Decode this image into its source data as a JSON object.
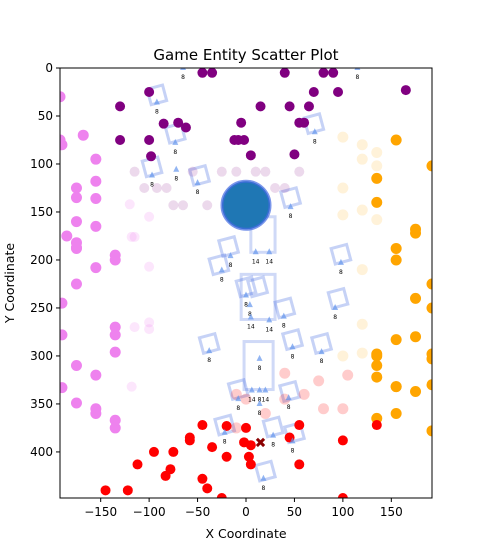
{
  "chart_data": {
    "type": "scatter",
    "title": "Game Entity Scatter Plot",
    "xlabel": "X Coordinate",
    "ylabel": "Y Coordinate",
    "xlim": [
      -192,
      192
    ],
    "ylim": [
      448,
      0
    ],
    "y_inverted": true,
    "xticks": [
      -150,
      -100,
      -50,
      0,
      50,
      100,
      150
    ],
    "yticks": [
      0,
      50,
      100,
      150,
      200,
      250,
      300,
      350,
      400
    ],
    "grid": false,
    "legend": "none",
    "colors": {
      "purple": "#800080",
      "violet": "#ee82ee",
      "orange": "#ffa500",
      "red": "#ff0000",
      "blue": "#1f77b4",
      "frame": "#4169e1",
      "marker": "#8b0000"
    },
    "series": [
      {
        "color": "#800080",
        "alpha": 1.0,
        "x": [
          -45,
          -35,
          -130,
          -130,
          -100,
          -100,
          -98,
          -85,
          -70,
          -62,
          -12,
          -8,
          -5,
          -2,
          5,
          15,
          40,
          45,
          50,
          55,
          60,
          65,
          70,
          80,
          90,
          95,
          165
        ],
        "y": [
          5,
          5,
          40,
          75,
          25,
          75,
          92,
          58,
          57,
          62,
          75,
          75,
          57,
          75,
          91,
          40,
          5,
          40,
          90,
          57,
          57,
          40,
          25,
          5,
          5,
          25,
          23
        ]
      },
      {
        "color": "#800080",
        "alpha": 0.15,
        "x": [
          -115,
          -105,
          -92,
          -82,
          -75,
          -65,
          -55,
          -40,
          -25,
          -10,
          10,
          20,
          30,
          40,
          55
        ],
        "y": [
          108,
          125,
          125,
          125,
          143,
          143,
          108,
          143,
          108,
          108,
          108,
          108,
          125,
          125,
          108
        ]
      },
      {
        "color": "#ee82ee",
        "alpha": 1.0,
        "x": [
          -192,
          -192,
          -190,
          -185,
          -175,
          -175,
          -175,
          -175,
          -175,
          -175,
          -168,
          -155,
          -155,
          -155,
          -155,
          -135,
          -135,
          -135,
          -135
        ],
        "y": [
          30,
          75,
          80,
          175,
          125,
          135,
          160,
          182,
          188,
          225,
          70,
          95,
          118,
          136,
          165,
          195,
          200,
          270,
          278
        ],
        "size": 5.5
      },
      {
        "color": "#ee82ee",
        "alpha": 1.0,
        "x": [
          -190,
          -190,
          -175,
          -155,
          -155,
          -135,
          -135,
          -155,
          -135,
          -175,
          -155,
          -190,
          -175
        ],
        "y": [
          245,
          278,
          310,
          320,
          360,
          296,
          375,
          355,
          367,
          349,
          208,
          333,
          187
        ],
        "size": 5.5
      },
      {
        "color": "#ee82ee",
        "alpha": 0.2,
        "x": [
          -120,
          -115,
          -115,
          -100,
          -100,
          -100,
          -100,
          -118,
          -135,
          -118
        ],
        "y": [
          142,
          176,
          270,
          155,
          207,
          265,
          272,
          332,
          368,
          176
        ]
      },
      {
        "color": "#ffa500",
        "alpha": 1.0,
        "x": [
          155,
          135,
          135,
          175,
          175,
          155,
          155,
          175,
          135,
          135,
          135,
          155,
          175,
          135,
          155,
          192,
          192,
          192,
          192,
          175,
          192,
          155,
          135,
          192,
          155,
          192
        ],
        "y": [
          75,
          115,
          140,
          168,
          172,
          188,
          200,
          240,
          298,
          310,
          322,
          332,
          337,
          365,
          360,
          102,
          225,
          250,
          298,
          280,
          303,
          283,
          300,
          330,
          332,
          378
        ],
        "size": 5.5
      },
      {
        "color": "#ffa500",
        "alpha": 0.15,
        "x": [
          100,
          120,
          120,
          120,
          120,
          100,
          100,
          120,
          120,
          100,
          135,
          135,
          135
        ],
        "y": [
          72,
          80,
          95,
          148,
          210,
          125,
          153,
          267,
          297,
          300,
          88,
          102,
          158
        ],
        "size": 5.5
      },
      {
        "color": "#ff0000",
        "alpha": 1.0,
        "x": [
          -145,
          -122,
          -112,
          -95,
          -83,
          -78,
          -75,
          -58,
          -58,
          -45,
          -45,
          -40,
          -35,
          -25,
          -20,
          -20,
          0,
          -2,
          3,
          5,
          5,
          45,
          55,
          55,
          100,
          100,
          135
        ],
        "y": [
          440,
          440,
          413,
          400,
          425,
          418,
          400,
          388,
          385,
          372,
          428,
          438,
          395,
          448,
          373,
          405,
          375,
          390,
          405,
          413,
          393,
          385,
          372,
          413,
          388,
          448,
          372
        ]
      },
      {
        "color": "#ff0000",
        "alpha": 0.2,
        "x": [
          -10,
          0,
          -10,
          20,
          40,
          60,
          75,
          80,
          100,
          105,
          40
        ],
        "y": [
          340,
          345,
          375,
          360,
          318,
          340,
          326,
          355,
          355,
          320,
          345
        ],
        "size": 5.5
      },
      {
        "color": "#1f77b4",
        "alpha": 1.0,
        "x": [
          0
        ],
        "y": [
          143
        ],
        "size": 24,
        "outline": "#4169e1"
      }
    ],
    "special_marker": {
      "shape": "x",
      "color": "#8b0000",
      "x": [
        15
      ],
      "y": [
        390
      ]
    },
    "entities": [
      {
        "x": -92,
        "y": 36,
        "label": "8"
      },
      {
        "x": -73,
        "y": 78,
        "label": "8"
      },
      {
        "x": -97,
        "y": 112,
        "label": "8"
      },
      {
        "x": -72,
        "y": 106,
        "label": "8"
      },
      {
        "x": -50,
        "y": 120,
        "label": "8"
      },
      {
        "x": 46,
        "y": 145,
        "label": "8"
      },
      {
        "x": 71,
        "y": 67,
        "label": "8"
      },
      {
        "x": -16,
        "y": 196,
        "label": "8"
      },
      {
        "x": 10,
        "y": 192,
        "label": "14"
      },
      {
        "x": 24,
        "y": 192,
        "label": "14"
      },
      {
        "x": -25,
        "y": 211,
        "label": "8"
      },
      {
        "x": 98,
        "y": 203,
        "label": "8"
      },
      {
        "x": 0,
        "y": 237,
        "label": "8"
      },
      {
        "x": 4,
        "y": 247,
        "label": "8"
      },
      {
        "x": 5,
        "y": 260,
        "label": "14"
      },
      {
        "x": 24,
        "y": 263,
        "label": "14"
      },
      {
        "x": 39,
        "y": 259,
        "label": "8"
      },
      {
        "x": 92,
        "y": 250,
        "label": "8"
      },
      {
        "x": -38,
        "y": 295,
        "label": "8"
      },
      {
        "x": 48,
        "y": 291,
        "label": "8"
      },
      {
        "x": 78,
        "y": 296,
        "label": "8"
      },
      {
        "x": 14,
        "y": 303,
        "label": "8"
      },
      {
        "x": -8,
        "y": 345,
        "label": "8"
      },
      {
        "x": 6,
        "y": 336,
        "label": "14"
      },
      {
        "x": 14,
        "y": 336,
        "label": "8"
      },
      {
        "x": 20,
        "y": 336,
        "label": "14"
      },
      {
        "x": 14,
        "y": 350,
        "label": "8"
      },
      {
        "x": 44,
        "y": 344,
        "label": "8"
      },
      {
        "x": -22,
        "y": 380,
        "label": "8"
      },
      {
        "x": 28,
        "y": 383,
        "label": "8"
      },
      {
        "x": 48,
        "y": 389,
        "label": "8"
      },
      {
        "x": 18,
        "y": 428,
        "label": "8"
      },
      {
        "x": -65,
        "y": 0,
        "label": "8"
      },
      {
        "x": 115,
        "y": 0,
        "label": "8"
      }
    ],
    "boxes": [
      {
        "x": -92,
        "y": 28
      },
      {
        "x": -73,
        "y": 68
      },
      {
        "x": -97,
        "y": 103
      },
      {
        "x": -48,
        "y": 112
      },
      {
        "x": 46,
        "y": 135
      },
      {
        "x": 70,
        "y": 58
      },
      {
        "x": -18,
        "y": 186
      },
      {
        "x": 98,
        "y": 194
      },
      {
        "x": 95,
        "y": 240
      },
      {
        "x": 40,
        "y": 250
      },
      {
        "x": -38,
        "y": 287
      },
      {
        "x": 48,
        "y": 283
      },
      {
        "x": 78,
        "y": 287
      },
      {
        "x": -8,
        "y": 335
      },
      {
        "x": 45,
        "y": 337
      },
      {
        "x": -22,
        "y": 372
      },
      {
        "x": 28,
        "y": 374
      },
      {
        "x": 50,
        "y": 380
      },
      {
        "x": 20,
        "y": 420
      },
      {
        "x": -28,
        "y": 205
      },
      {
        "x": 0,
        "y": 228
      },
      {
        "x": 12,
        "y": 228
      }
    ],
    "tall_frames": [
      {
        "x0": 5,
        "x1": 30,
        "y0": 155,
        "y1": 192
      },
      {
        "x0": -5,
        "x1": 30,
        "y0": 215,
        "y1": 262
      },
      {
        "x0": -2,
        "x1": 28,
        "y0": 285,
        "y1": 335
      }
    ]
  }
}
